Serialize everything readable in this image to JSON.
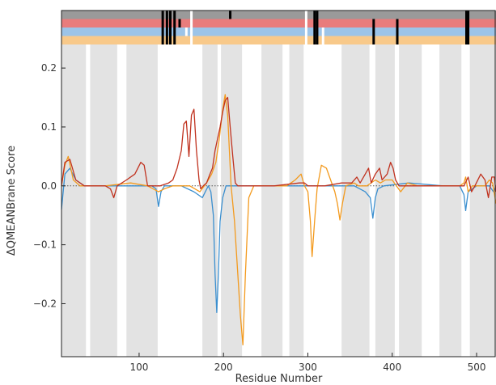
{
  "chart_data": {
    "type": "line",
    "xlabel": "Residue Number",
    "ylabel": "ΔQMEANBrane Score",
    "xlim": [
      8,
      523
    ],
    "ylim": [
      -0.29,
      0.24
    ],
    "x_ticks": [
      100,
      200,
      300,
      400,
      500
    ],
    "y_ticks": [
      -0.2,
      -0.1,
      0.0,
      0.1,
      0.2
    ],
    "x_tick_labels": [
      "100",
      "200",
      "300",
      "400",
      "500"
    ],
    "y_tick_labels": [
      "−0.2",
      "−0.1",
      "0.0",
      "0.1",
      "0.2"
    ],
    "grid": false,
    "legend": "none",
    "zero_line": {
      "y": 0.0,
      "style": "dotted",
      "color": "#555555"
    },
    "shaded_regions": [
      [
        8,
        37
      ],
      [
        42,
        74
      ],
      [
        85,
        122
      ],
      [
        175,
        193
      ],
      [
        197,
        222
      ],
      [
        245,
        270
      ],
      [
        278,
        295
      ],
      [
        340,
        373
      ],
      [
        380,
        403
      ],
      [
        408,
        435
      ],
      [
        456,
        482
      ],
      [
        492,
        523
      ]
    ],
    "region_color": "#e3e3e3",
    "top_bands": [
      {
        "color": "#9a9a9a",
        "marks": [
          {
            "x": 128,
            "color": "#000000"
          },
          {
            "x": 133,
            "color": "#000000"
          },
          {
            "x": 137,
            "color": "#000000"
          },
          {
            "x": 142,
            "color": "#000000"
          },
          {
            "x": 162,
            "color": "#ffffff"
          },
          {
            "x": 208,
            "color": "#000000"
          },
          {
            "x": 298,
            "color": "#ffffff"
          },
          {
            "x": 308,
            "color": "#000000"
          },
          {
            "x": 311,
            "color": "#000000"
          },
          {
            "x": 488,
            "color": "#000000"
          },
          {
            "x": 490,
            "color": "#000000"
          }
        ]
      },
      {
        "color": "#e87c7c",
        "marks": [
          {
            "x": 128,
            "color": "#000000"
          },
          {
            "x": 133,
            "color": "#000000"
          },
          {
            "x": 137,
            "color": "#000000"
          },
          {
            "x": 142,
            "color": "#000000"
          },
          {
            "x": 148,
            "color": "#000000"
          },
          {
            "x": 162,
            "color": "#ffffff"
          },
          {
            "x": 298,
            "color": "#ffffff"
          },
          {
            "x": 308,
            "color": "#000000"
          },
          {
            "x": 311,
            "color": "#000000"
          },
          {
            "x": 378,
            "color": "#000000"
          },
          {
            "x": 406,
            "color": "#000000"
          },
          {
            "x": 488,
            "color": "#000000"
          },
          {
            "x": 490,
            "color": "#000000"
          }
        ]
      },
      {
        "color": "#9cc4e8",
        "marks": [
          {
            "x": 128,
            "color": "#000000"
          },
          {
            "x": 133,
            "color": "#000000"
          },
          {
            "x": 137,
            "color": "#000000"
          },
          {
            "x": 142,
            "color": "#000000"
          },
          {
            "x": 156,
            "color": "#ffffff"
          },
          {
            "x": 162,
            "color": "#ffffff"
          },
          {
            "x": 298,
            "color": "#ffffff"
          },
          {
            "x": 308,
            "color": "#000000"
          },
          {
            "x": 311,
            "color": "#000000"
          },
          {
            "x": 318,
            "color": "#ffffff"
          },
          {
            "x": 378,
            "color": "#000000"
          },
          {
            "x": 406,
            "color": "#000000"
          },
          {
            "x": 488,
            "color": "#000000"
          },
          {
            "x": 490,
            "color": "#000000"
          }
        ]
      },
      {
        "color": "#f8c98a",
        "marks": [
          {
            "x": 128,
            "color": "#000000"
          },
          {
            "x": 133,
            "color": "#000000"
          },
          {
            "x": 137,
            "color": "#000000"
          },
          {
            "x": 142,
            "color": "#000000"
          },
          {
            "x": 162,
            "color": "#ffffff"
          },
          {
            "x": 298,
            "color": "#ffffff"
          },
          {
            "x": 308,
            "color": "#000000"
          },
          {
            "x": 311,
            "color": "#000000"
          },
          {
            "x": 318,
            "color": "#ffffff"
          },
          {
            "x": 378,
            "color": "#000000"
          },
          {
            "x": 406,
            "color": "#000000"
          },
          {
            "x": 488,
            "color": "#000000"
          },
          {
            "x": 490,
            "color": "#000000"
          }
        ]
      }
    ],
    "series": [
      {
        "color": "#3b8fcf",
        "points": [
          [
            8,
            -0.04
          ],
          [
            12,
            0.02
          ],
          [
            18,
            0.03
          ],
          [
            25,
            0.01
          ],
          [
            35,
            0.0
          ],
          [
            60,
            0.0
          ],
          [
            90,
            0.0
          ],
          [
            115,
            0.0
          ],
          [
            120,
            -0.005
          ],
          [
            123,
            -0.035
          ],
          [
            126,
            -0.01
          ],
          [
            130,
            0.0
          ],
          [
            150,
            0.0
          ],
          [
            165,
            -0.01
          ],
          [
            175,
            -0.02
          ],
          [
            182,
            0.0
          ],
          [
            185,
            -0.01
          ],
          [
            188,
            -0.05
          ],
          [
            190,
            -0.15
          ],
          [
            192,
            -0.215
          ],
          [
            194,
            -0.15
          ],
          [
            196,
            -0.06
          ],
          [
            199,
            -0.02
          ],
          [
            203,
            0.0
          ],
          [
            230,
            0.0
          ],
          [
            260,
            0.0
          ],
          [
            300,
            0.0
          ],
          [
            330,
            0.0
          ],
          [
            355,
            0.0
          ],
          [
            368,
            -0.01
          ],
          [
            374,
            -0.02
          ],
          [
            377,
            -0.055
          ],
          [
            380,
            -0.02
          ],
          [
            383,
            -0.005
          ],
          [
            390,
            0.0
          ],
          [
            420,
            0.005
          ],
          [
            460,
            0.0
          ],
          [
            480,
            0.0
          ],
          [
            485,
            -0.015
          ],
          [
            487,
            -0.042
          ],
          [
            490,
            -0.01
          ],
          [
            500,
            0.0
          ],
          [
            515,
            0.0
          ],
          [
            520,
            -0.01
          ],
          [
            523,
            0.0
          ]
        ]
      },
      {
        "color": "#f39a1e",
        "points": [
          [
            8,
            0.0
          ],
          [
            12,
            0.035
          ],
          [
            16,
            0.05
          ],
          [
            22,
            0.01
          ],
          [
            30,
            0.0
          ],
          [
            60,
            0.0
          ],
          [
            90,
            0.005
          ],
          [
            110,
            0.0
          ],
          [
            123,
            -0.01
          ],
          [
            130,
            -0.005
          ],
          [
            140,
            0.0
          ],
          [
            160,
            0.0
          ],
          [
            172,
            -0.01
          ],
          [
            180,
            0.005
          ],
          [
            186,
            0.02
          ],
          [
            191,
            0.04
          ],
          [
            195,
            0.08
          ],
          [
            199,
            0.13
          ],
          [
            202,
            0.155
          ],
          [
            205,
            0.12
          ],
          [
            209,
            0.0
          ],
          [
            213,
            -0.06
          ],
          [
            217,
            -0.15
          ],
          [
            220,
            -0.22
          ],
          [
            223,
            -0.27
          ],
          [
            226,
            -0.15
          ],
          [
            230,
            -0.02
          ],
          [
            236,
            0.0
          ],
          [
            245,
            0.0
          ],
          [
            260,
            0.0
          ],
          [
            275,
            0.0
          ],
          [
            285,
            0.01
          ],
          [
            292,
            0.02
          ],
          [
            296,
            0.0
          ],
          [
            300,
            -0.01
          ],
          [
            303,
            -0.06
          ],
          [
            305,
            -0.12
          ],
          [
            308,
            -0.06
          ],
          [
            311,
            -0.005
          ],
          [
            316,
            0.035
          ],
          [
            322,
            0.03
          ],
          [
            327,
            0.01
          ],
          [
            332,
            -0.01
          ],
          [
            335,
            -0.03
          ],
          [
            338,
            -0.058
          ],
          [
            341,
            -0.03
          ],
          [
            345,
            0.0
          ],
          [
            355,
            0.005
          ],
          [
            360,
            0.0
          ],
          [
            370,
            0.0
          ],
          [
            380,
            0.01
          ],
          [
            386,
            0.005
          ],
          [
            392,
            0.01
          ],
          [
            400,
            0.01
          ],
          [
            410,
            -0.01
          ],
          [
            418,
            0.005
          ],
          [
            430,
            0.0
          ],
          [
            460,
            0.0
          ],
          [
            480,
            0.0
          ],
          [
            485,
            0.005
          ],
          [
            487,
            0.015
          ],
          [
            490,
            -0.01
          ],
          [
            495,
            0.0
          ],
          [
            510,
            0.0
          ],
          [
            515,
            0.01
          ],
          [
            519,
            0.005
          ],
          [
            523,
            -0.03
          ]
        ]
      },
      {
        "color": "#c0321f",
        "points": [
          [
            8,
            0.0
          ],
          [
            12,
            0.04
          ],
          [
            18,
            0.045
          ],
          [
            25,
            0.01
          ],
          [
            35,
            0.0
          ],
          [
            60,
            0.0
          ],
          [
            66,
            -0.005
          ],
          [
            70,
            -0.02
          ],
          [
            74,
            0.0
          ],
          [
            85,
            0.01
          ],
          [
            95,
            0.02
          ],
          [
            102,
            0.04
          ],
          [
            106,
            0.035
          ],
          [
            110,
            0.0
          ],
          [
            115,
            0.0
          ],
          [
            125,
            0.0
          ],
          [
            135,
            0.005
          ],
          [
            140,
            0.01
          ],
          [
            145,
            0.03
          ],
          [
            150,
            0.06
          ],
          [
            153,
            0.105
          ],
          [
            156,
            0.11
          ],
          [
            159,
            0.05
          ],
          [
            162,
            0.12
          ],
          [
            165,
            0.13
          ],
          [
            168,
            0.06
          ],
          [
            171,
            0.01
          ],
          [
            173,
            -0.005
          ],
          [
            176,
            0.0
          ],
          [
            180,
            0.005
          ],
          [
            184,
            0.02
          ],
          [
            187,
            0.03
          ],
          [
            190,
            0.06
          ],
          [
            193,
            0.08
          ],
          [
            196,
            0.1
          ],
          [
            199,
            0.125
          ],
          [
            202,
            0.145
          ],
          [
            205,
            0.15
          ],
          [
            208,
            0.1
          ],
          [
            211,
            0.05
          ],
          [
            214,
            0.005
          ],
          [
            217,
            0.0
          ],
          [
            240,
            0.0
          ],
          [
            260,
            0.0
          ],
          [
            290,
            0.005
          ],
          [
            296,
            0.005
          ],
          [
            300,
            0.0
          ],
          [
            320,
            0.0
          ],
          [
            340,
            0.005
          ],
          [
            352,
            0.005
          ],
          [
            358,
            0.015
          ],
          [
            362,
            0.005
          ],
          [
            368,
            0.02
          ],
          [
            372,
            0.03
          ],
          [
            375,
            0.005
          ],
          [
            380,
            0.02
          ],
          [
            385,
            0.03
          ],
          [
            388,
            0.01
          ],
          [
            394,
            0.02
          ],
          [
            398,
            0.04
          ],
          [
            401,
            0.03
          ],
          [
            404,
            0.01
          ],
          [
            408,
            0.0
          ],
          [
            420,
            0.0
          ],
          [
            440,
            0.0
          ],
          [
            470,
            0.0
          ],
          [
            485,
            0.0
          ],
          [
            490,
            0.015
          ],
          [
            494,
            -0.01
          ],
          [
            498,
            0.0
          ],
          [
            505,
            0.02
          ],
          [
            510,
            0.01
          ],
          [
            514,
            -0.02
          ],
          [
            518,
            0.015
          ],
          [
            521,
            0.015
          ],
          [
            523,
            -0.01
          ]
        ]
      }
    ]
  }
}
